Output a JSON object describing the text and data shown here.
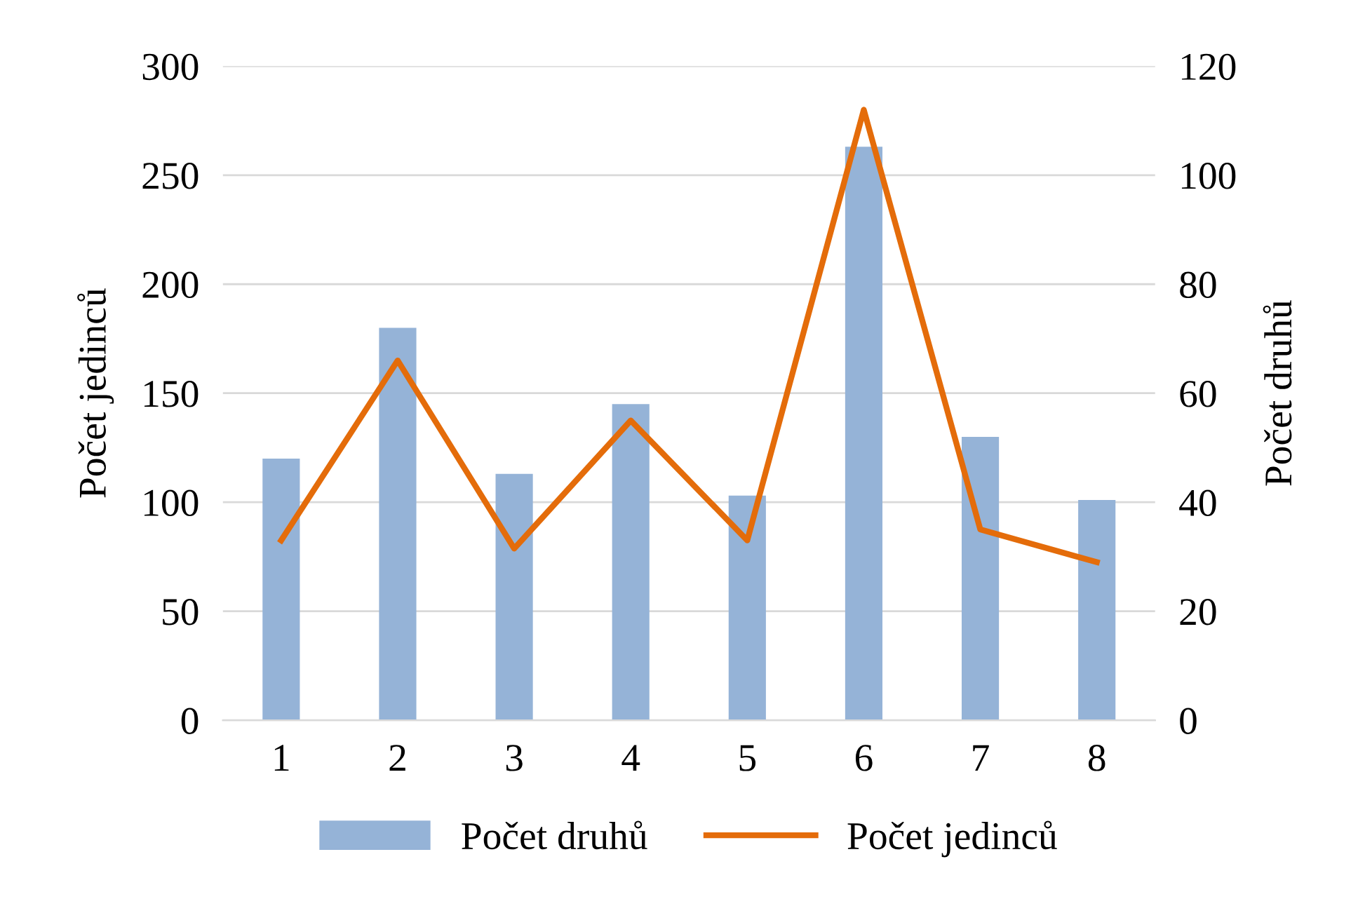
{
  "chart_data": {
    "type": "bar",
    "ylabel": "Počet jedinců",
    "y2label": "Počet druhů",
    "categories": [
      "1",
      "2",
      "3",
      "4",
      "5",
      "6",
      "7",
      "8"
    ],
    "series": [
      {
        "name": "Počet druhů",
        "color": "#95b3d7",
        "values": [
          120,
          180,
          113,
          145,
          103,
          263,
          130,
          101
        ]
      },
      {
        "name": "Počet jedinců",
        "type": "line",
        "axis": "y2",
        "color": "#e46c0a",
        "values": [
          33,
          66,
          31.5,
          55,
          33,
          112,
          35,
          29
        ]
      }
    ],
    "ylim": [
      0,
      300
    ],
    "yticks": [
      0,
      50,
      100,
      150,
      200,
      250,
      300
    ],
    "y2lim": [
      0,
      120
    ],
    "y2ticks": [
      0,
      20,
      40,
      60,
      80,
      100,
      120
    ],
    "grid": "y",
    "legend": "bottom",
    "marker": "none",
    "line_style": "solid"
  }
}
